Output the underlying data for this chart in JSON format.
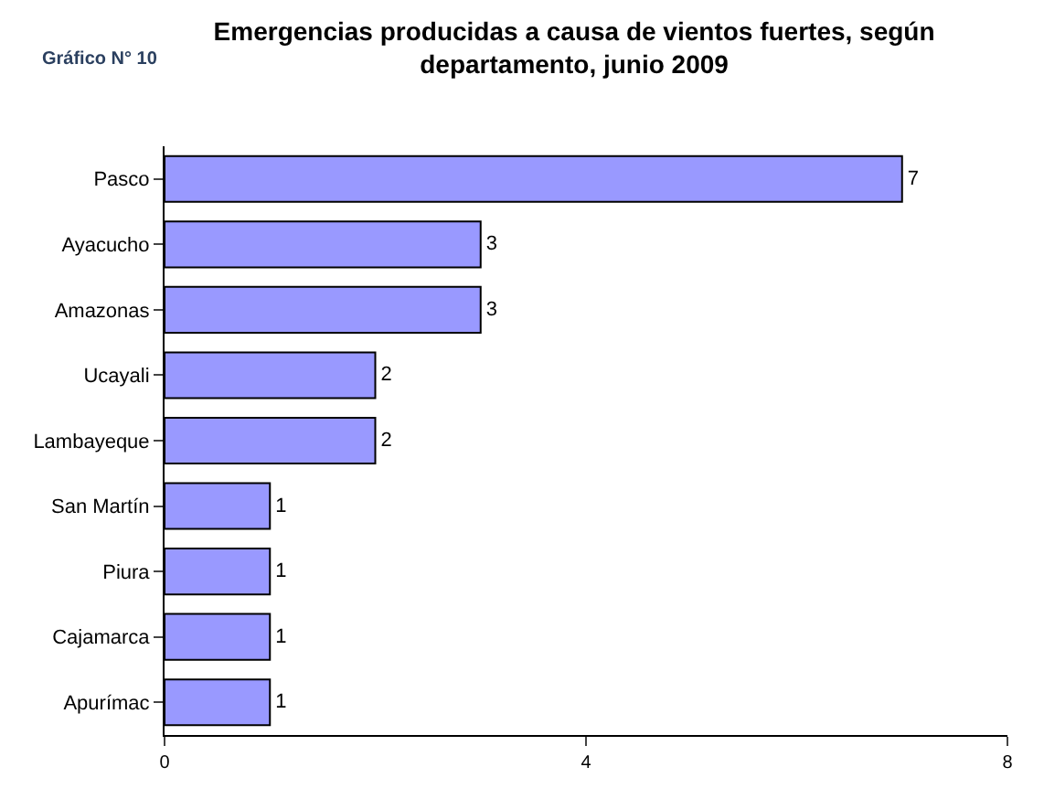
{
  "chart_data": {
    "type": "bar",
    "orientation": "horizontal",
    "title": "Emergencias producidas a causa de vientos fuertes, según departamento, junio 2009",
    "annotations": [
      "Gráfico N° 10"
    ],
    "categories": [
      "Pasco",
      "Ayacucho",
      "Amazonas",
      "Ucayali",
      "Lambayeque",
      "San Martín",
      "Piura",
      "Cajamarca",
      "Apurímac"
    ],
    "values": [
      7,
      3,
      3,
      2,
      2,
      1,
      1,
      1,
      1
    ],
    "color": "#9999ff",
    "data_labels": true,
    "xlim": [
      0,
      8
    ],
    "xticks": [
      0,
      4,
      8
    ]
  }
}
